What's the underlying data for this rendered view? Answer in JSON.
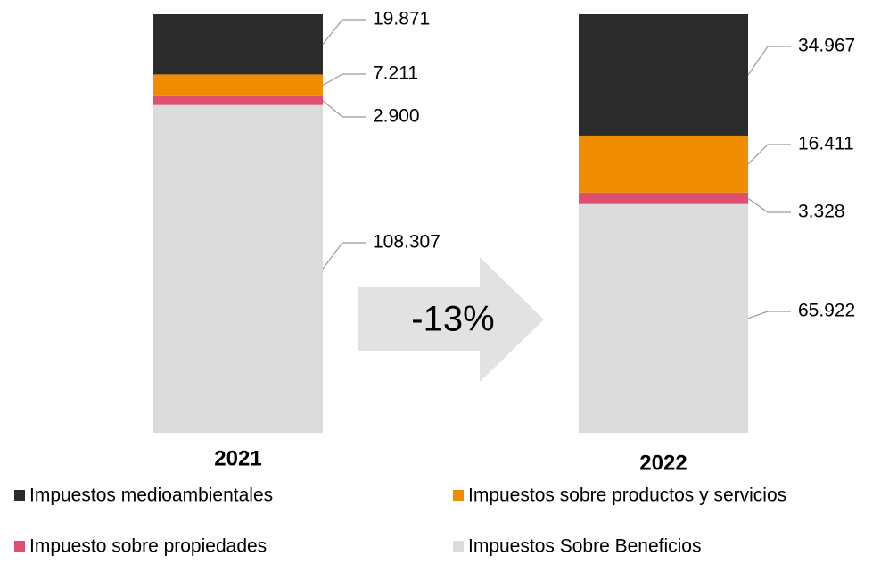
{
  "chart_data": {
    "type": "bar",
    "stacking": "percent",
    "categories": [
      "2021",
      "2022"
    ],
    "series": [
      {
        "name": "Impuestos Sobre Beneficios",
        "color": "#dcdcdc",
        "values": [
          108307,
          65922
        ],
        "value_labels": [
          "108.307",
          "65.922"
        ]
      },
      {
        "name": "Impuesto sobre propiedades",
        "color": "#e0506e",
        "values": [
          2900,
          3328
        ],
        "value_labels": [
          "2.900",
          "3.328"
        ]
      },
      {
        "name": "Impuestos sobre productos y servicios",
        "color": "#ef8c00",
        "values": [
          7211,
          16411
        ],
        "value_labels": [
          "7.211",
          "16.411"
        ]
      },
      {
        "name": "Impuestos medioambientales",
        "color": "#2b2b2b",
        "values": [
          19871,
          34967
        ],
        "value_labels": [
          "19.871",
          "34.967"
        ]
      }
    ],
    "annotation": "-13%"
  }
}
